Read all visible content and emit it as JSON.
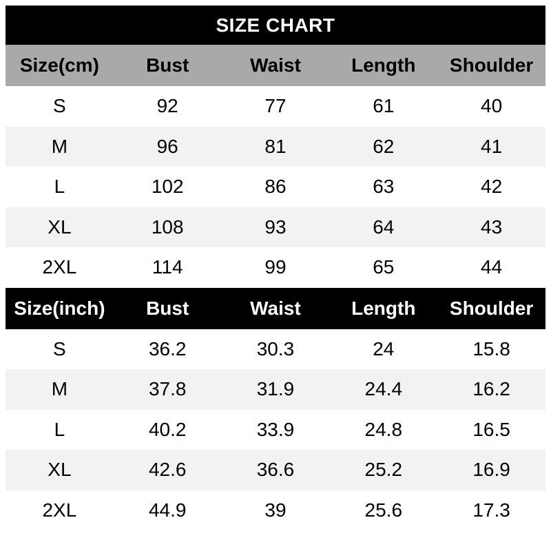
{
  "title": "SIZE CHART",
  "colors": {
    "banner_bg": "#000000",
    "banner_text": "#ffffff",
    "cm_header_bg": "#a9a9a9",
    "cm_header_text": "#000000",
    "inch_header_bg": "#000000",
    "inch_header_text": "#ffffff",
    "row_bg": "#ffffff",
    "row_alt_bg": "#f2f2f2",
    "data_text": "#000000"
  },
  "cm_table": {
    "headers": [
      "Size(cm)",
      "Bust",
      "Waist",
      "Length",
      "Shoulder"
    ],
    "rows": [
      [
        "S",
        "92",
        "77",
        "61",
        "40"
      ],
      [
        "M",
        "96",
        "81",
        "62",
        "41"
      ],
      [
        "L",
        "102",
        "86",
        "63",
        "42"
      ],
      [
        "XL",
        "108",
        "93",
        "64",
        "43"
      ],
      [
        "2XL",
        "114",
        "99",
        "65",
        "44"
      ]
    ]
  },
  "inch_table": {
    "headers": [
      "Size(inch)",
      "Bust",
      "Waist",
      "Length",
      "Shoulder"
    ],
    "rows": [
      [
        "S",
        "36.2",
        "30.3",
        "24",
        "15.8"
      ],
      [
        "M",
        "37.8",
        "31.9",
        "24.4",
        "16.2"
      ],
      [
        "L",
        "40.2",
        "33.9",
        "24.8",
        "16.5"
      ],
      [
        "XL",
        "42.6",
        "36.6",
        "25.2",
        "16.9"
      ],
      [
        "2XL",
        "44.9",
        "39",
        "25.6",
        "17.3"
      ]
    ]
  }
}
